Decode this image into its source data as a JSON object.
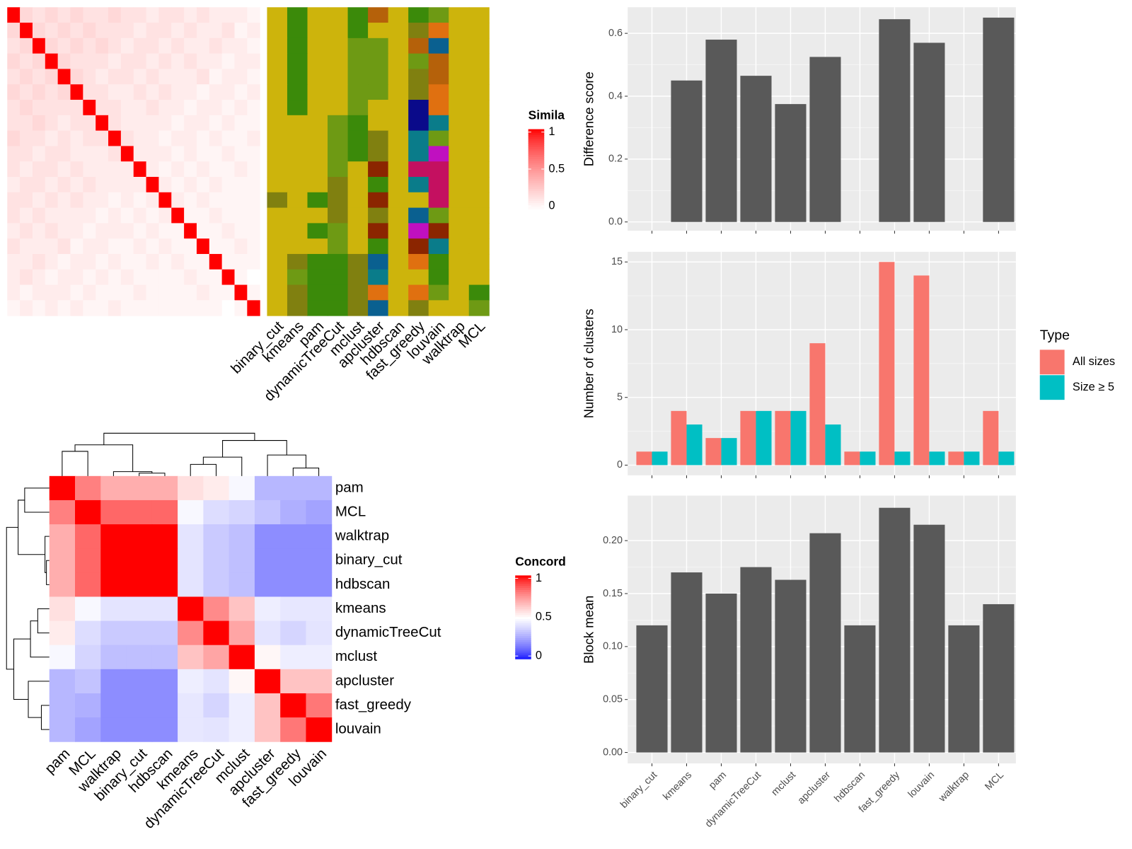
{
  "chart_data": [
    {
      "type": "heatmap",
      "legend_title": "Simila",
      "legend_ticks": [
        0,
        0.5,
        1
      ],
      "low_color": "#ffffff",
      "high_color": "#ff0000",
      "values": [
        [
          1,
          0.2,
          0.15,
          0.2,
          0.15,
          0.2,
          0.15,
          0.15,
          0.2,
          0.15,
          0.15,
          0.1,
          0.15,
          0.15,
          0.1,
          0.15,
          0.1,
          0.1,
          0.1,
          0.05
        ],
        [
          0.2,
          1,
          0.2,
          0.15,
          0.2,
          0.15,
          0.2,
          0.15,
          0.15,
          0.15,
          0.1,
          0.15,
          0.15,
          0.1,
          0.15,
          0.1,
          0.1,
          0.15,
          0.05,
          0.1
        ],
        [
          0.15,
          0.2,
          1,
          0.2,
          0.15,
          0.2,
          0.15,
          0.2,
          0.15,
          0.1,
          0.15,
          0.15,
          0.1,
          0.15,
          0.1,
          0.1,
          0.15,
          0.1,
          0.1,
          0.05
        ],
        [
          0.2,
          0.15,
          0.2,
          1,
          0.2,
          0.15,
          0.15,
          0.15,
          0.1,
          0.15,
          0.15,
          0.1,
          0.15,
          0.1,
          0.15,
          0.1,
          0.1,
          0.05,
          0.1,
          0.1
        ],
        [
          0.15,
          0.2,
          0.15,
          0.2,
          1,
          0.2,
          0.15,
          0.1,
          0.15,
          0.15,
          0.1,
          0.15,
          0.1,
          0.1,
          0.1,
          0.15,
          0.05,
          0.1,
          0.1,
          0.05
        ],
        [
          0.2,
          0.15,
          0.2,
          0.15,
          0.2,
          1,
          0.15,
          0.15,
          0.1,
          0.1,
          0.15,
          0.1,
          0.15,
          0.1,
          0.1,
          0.05,
          0.1,
          0.1,
          0.05,
          0.1
        ],
        [
          0.15,
          0.2,
          0.15,
          0.15,
          0.15,
          0.15,
          1,
          0.15,
          0.15,
          0.1,
          0.1,
          0.15,
          0.1,
          0.1,
          0.05,
          0.1,
          0.1,
          0.05,
          0.1,
          0.05
        ],
        [
          0.15,
          0.15,
          0.2,
          0.15,
          0.1,
          0.15,
          0.15,
          1,
          0.15,
          0.1,
          0.1,
          0.1,
          0.1,
          0.05,
          0.1,
          0.1,
          0.05,
          0.1,
          0.05,
          0.05
        ],
        [
          0.2,
          0.15,
          0.15,
          0.1,
          0.15,
          0.1,
          0.15,
          0.15,
          1,
          0.15,
          0.1,
          0.1,
          0.05,
          0.1,
          0.1,
          0.05,
          0.1,
          0.05,
          0.05,
          0.1
        ],
        [
          0.15,
          0.15,
          0.1,
          0.15,
          0.15,
          0.1,
          0.1,
          0.1,
          0.15,
          1,
          0.1,
          0.1,
          0.1,
          0.05,
          0.1,
          0.05,
          0.05,
          0.1,
          0.05,
          0.05
        ],
        [
          0.15,
          0.1,
          0.15,
          0.15,
          0.1,
          0.15,
          0.1,
          0.1,
          0.1,
          0.1,
          1,
          0.1,
          0.05,
          0.1,
          0.05,
          0.1,
          0.05,
          0.05,
          0.1,
          0.05
        ],
        [
          0.1,
          0.15,
          0.15,
          0.1,
          0.15,
          0.1,
          0.15,
          0.1,
          0.1,
          0.1,
          0.1,
          1,
          0.1,
          0.05,
          0.1,
          0.05,
          0.1,
          0.05,
          0.05,
          0.05
        ],
        [
          0.15,
          0.15,
          0.1,
          0.15,
          0.1,
          0.15,
          0.1,
          0.1,
          0.05,
          0.1,
          0.05,
          0.1,
          1,
          0.1,
          0.05,
          0.1,
          0.05,
          0.05,
          0.05,
          0.05
        ],
        [
          0.15,
          0.1,
          0.15,
          0.1,
          0.1,
          0.1,
          0.1,
          0.05,
          0.1,
          0.05,
          0.1,
          0.05,
          0.1,
          1,
          0.05,
          0.05,
          0.1,
          0.05,
          0.05,
          0.05
        ],
        [
          0.1,
          0.15,
          0.1,
          0.15,
          0.1,
          0.1,
          0.05,
          0.1,
          0.1,
          0.1,
          0.05,
          0.1,
          0.05,
          0.05,
          1,
          0.05,
          0.05,
          0.1,
          0.05,
          0.05
        ],
        [
          0.15,
          0.1,
          0.1,
          0.1,
          0.15,
          0.05,
          0.1,
          0.1,
          0.05,
          0.05,
          0.1,
          0.05,
          0.1,
          0.05,
          0.05,
          1,
          0.05,
          0.05,
          0.1,
          0.05
        ],
        [
          0.1,
          0.1,
          0.15,
          0.1,
          0.05,
          0.1,
          0.1,
          0.05,
          0.1,
          0.05,
          0.05,
          0.1,
          0.05,
          0.1,
          0.05,
          0.05,
          1,
          0.05,
          0.05,
          0.05
        ],
        [
          0.1,
          0.15,
          0.1,
          0.05,
          0.1,
          0.1,
          0.05,
          0.1,
          0.05,
          0.1,
          0.05,
          0.05,
          0.05,
          0.05,
          0.1,
          0.05,
          0.05,
          1,
          0.05,
          0
        ],
        [
          0.1,
          0.05,
          0.1,
          0.1,
          0.1,
          0.05,
          0.1,
          0.05,
          0.05,
          0.05,
          0.1,
          0.05,
          0.05,
          0.05,
          0.05,
          0.1,
          0.05,
          0.05,
          1,
          0.05
        ],
        [
          0.05,
          0.1,
          0.05,
          0.1,
          0.05,
          0.1,
          0.05,
          0.05,
          0.1,
          0.05,
          0.05,
          0.05,
          0.05,
          0.05,
          0.05,
          0.05,
          0.05,
          0,
          0.05,
          1
        ]
      ]
    },
    {
      "type": "categorical_heatmap",
      "columns": [
        "binary_cut",
        "kmeans",
        "pam",
        "dynamicTreeCut",
        "mclust",
        "apcluster",
        "hdbscan",
        "fast_greedy",
        "louvain",
        "walktrap",
        "MCL"
      ],
      "palette": [
        "#cdb40c",
        "#3b8a0a",
        "#6e9a14",
        "#808010",
        "#8b2500",
        "#e07010",
        "#b5610a",
        "#0a7c8a",
        "#0a0a8a",
        "#c010c0",
        "#c41060",
        "#0a6090"
      ],
      "values": [
        [
          0,
          1,
          0,
          0,
          1,
          6,
          0,
          1,
          2,
          0,
          0
        ],
        [
          0,
          1,
          0,
          0,
          1,
          0,
          0,
          3,
          5,
          0,
          0
        ],
        [
          0,
          1,
          0,
          0,
          2,
          2,
          0,
          6,
          11,
          0,
          0
        ],
        [
          0,
          1,
          0,
          0,
          2,
          2,
          0,
          2,
          6,
          0,
          0
        ],
        [
          0,
          1,
          0,
          0,
          2,
          2,
          0,
          3,
          6,
          0,
          0
        ],
        [
          0,
          1,
          0,
          0,
          2,
          2,
          0,
          3,
          5,
          0,
          0
        ],
        [
          0,
          1,
          0,
          0,
          2,
          0,
          0,
          8,
          5,
          0,
          0
        ],
        [
          0,
          0,
          0,
          2,
          1,
          0,
          0,
          8,
          7,
          0,
          0
        ],
        [
          0,
          0,
          0,
          2,
          1,
          3,
          0,
          7,
          2,
          0,
          0
        ],
        [
          0,
          0,
          0,
          2,
          1,
          3,
          0,
          7,
          9,
          0,
          0
        ],
        [
          0,
          0,
          0,
          2,
          0,
          4,
          0,
          10,
          10,
          0,
          0
        ],
        [
          0,
          0,
          0,
          3,
          0,
          1,
          0,
          7,
          10,
          0,
          0
        ],
        [
          3,
          0,
          1,
          3,
          0,
          4,
          0,
          0,
          10,
          0,
          0
        ],
        [
          0,
          0,
          0,
          3,
          0,
          3,
          0,
          11,
          2,
          0,
          0
        ],
        [
          0,
          0,
          1,
          2,
          0,
          4,
          0,
          9,
          4,
          0,
          0
        ],
        [
          0,
          0,
          0,
          2,
          0,
          1,
          0,
          4,
          7,
          0,
          0
        ],
        [
          0,
          3,
          1,
          1,
          3,
          11,
          0,
          5,
          1,
          0,
          0
        ],
        [
          0,
          2,
          1,
          1,
          3,
          7,
          0,
          0,
          1,
          0,
          0
        ],
        [
          0,
          3,
          1,
          1,
          3,
          5,
          0,
          5,
          2,
          0,
          1
        ],
        [
          0,
          3,
          1,
          1,
          3,
          11,
          0,
          3,
          0,
          0,
          2
        ]
      ]
    },
    {
      "type": "heatmap",
      "legend_title": "Concord",
      "legend_ticks": [
        0,
        0.5,
        1
      ],
      "low_color": "#0000ff",
      "mid_color": "#ffffff",
      "high_color": "#ff0000",
      "rows": [
        "pam",
        "MCL",
        "walktrap",
        "binary_cut",
        "hdbscan",
        "kmeans",
        "dynamicTreeCut",
        "mclust",
        "apcluster",
        "fast_greedy",
        "louvain"
      ],
      "columns": [
        "pam",
        "MCL",
        "walktrap",
        "binary_cut",
        "hdbscan",
        "kmeans",
        "dynamicTreeCut",
        "mclust",
        "apcluster",
        "fast_greedy",
        "louvain"
      ],
      "values": [
        [
          1,
          0.8,
          0.7,
          0.7,
          0.7,
          0.58,
          0.55,
          0.48,
          0.3,
          0.3,
          0.3
        ],
        [
          0.8,
          1,
          0.85,
          0.85,
          0.85,
          0.48,
          0.4,
          0.38,
          0.33,
          0.28,
          0.25
        ],
        [
          0.7,
          0.85,
          1,
          1,
          1,
          0.42,
          0.35,
          0.32,
          0.2,
          0.2,
          0.2
        ],
        [
          0.7,
          0.85,
          1,
          1,
          1,
          0.42,
          0.35,
          0.32,
          0.2,
          0.2,
          0.2
        ],
        [
          0.7,
          0.85,
          1,
          1,
          1,
          0.42,
          0.35,
          0.32,
          0.2,
          0.2,
          0.2
        ],
        [
          0.58,
          0.48,
          0.42,
          0.42,
          0.42,
          1,
          0.78,
          0.65,
          0.45,
          0.43,
          0.43
        ],
        [
          0.55,
          0.4,
          0.35,
          0.35,
          0.35,
          0.78,
          1,
          0.72,
          0.42,
          0.38,
          0.42
        ],
        [
          0.48,
          0.38,
          0.32,
          0.32,
          0.32,
          0.65,
          0.72,
          1,
          0.52,
          0.45,
          0.45
        ],
        [
          0.3,
          0.33,
          0.2,
          0.2,
          0.2,
          0.45,
          0.42,
          0.52,
          1,
          0.65,
          0.65
        ],
        [
          0.3,
          0.28,
          0.2,
          0.2,
          0.2,
          0.43,
          0.38,
          0.45,
          0.65,
          1,
          0.82
        ],
        [
          0.3,
          0.25,
          0.2,
          0.2,
          0.2,
          0.43,
          0.42,
          0.45,
          0.65,
          0.82,
          1
        ]
      ]
    },
    {
      "type": "bar",
      "ylabel": "Difference score",
      "values": [
        null,
        0.45,
        0.58,
        0.465,
        0.375,
        0.525,
        null,
        0.645,
        0.57,
        null,
        0.65
      ],
      "color": "#595959",
      "ylim": [
        -0.028,
        0.683
      ],
      "yticks": [
        {
          "value": 0,
          "label": "0.0"
        },
        0.2,
        0.4,
        0.6
      ],
      "grid": true
    },
    {
      "type": "grouped_bar",
      "ylabel": "Number of clusters",
      "legend_title": "Type",
      "legend": "right",
      "series": [
        {
          "name": "All sizes",
          "color": "#f8766d",
          "values": [
            1,
            4,
            2,
            4,
            4,
            9,
            1,
            15,
            14,
            1,
            4
          ]
        },
        {
          "name": "Size ≥ 5",
          "color": "#00bfc4",
          "values": [
            1,
            3,
            2,
            4,
            4,
            3,
            1,
            1,
            1,
            1,
            1
          ]
        }
      ],
      "ylim": [
        -0.75,
        15.75
      ],
      "yticks": [
        0,
        5,
        10,
        15
      ],
      "grid": true
    },
    {
      "type": "bar",
      "ylabel": "Block mean",
      "categories": [
        "binary_cut",
        "kmeans",
        "pam",
        "dynamicTreeCut",
        "mclust",
        "apcluster",
        "hdbscan",
        "fast_greedy",
        "louvain",
        "walktrap",
        "MCL"
      ],
      "values": [
        0.12,
        0.17,
        0.15,
        0.175,
        0.163,
        0.207,
        0.12,
        0.231,
        0.215,
        0.12,
        0.14
      ],
      "color": "#595959",
      "ylim": [
        -0.0103,
        0.2425
      ],
      "yticks": [
        {
          "value": 0,
          "label": "0.00"
        },
        {
          "value": 0.05,
          "label": "0.05"
        },
        {
          "value": 0.1,
          "label": "0.10"
        },
        {
          "value": 0.15,
          "label": "0.15"
        },
        {
          "value": 0.2,
          "label": "0.20"
        }
      ],
      "grid": true
    }
  ]
}
